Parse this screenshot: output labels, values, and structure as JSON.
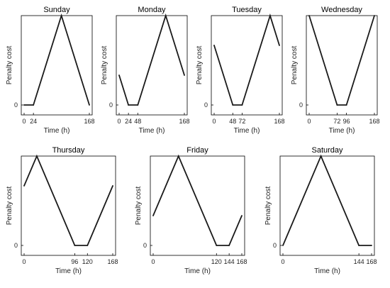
{
  "chart_data": [
    {
      "type": "line",
      "title": "Sunday",
      "xlabel": "Time (h)",
      "ylabel": "Penalty cost",
      "xlim": [
        0,
        168
      ],
      "xticks": [
        0,
        24,
        168
      ],
      "yticks": [
        0
      ],
      "x": [
        0,
        24,
        96,
        168
      ],
      "y": [
        0,
        0,
        1,
        0
      ]
    },
    {
      "type": "line",
      "title": "Monday",
      "xlabel": "Time (h)",
      "ylabel": "Penalty cost",
      "xlim": [
        0,
        168
      ],
      "xticks": [
        0,
        24,
        48,
        168
      ],
      "yticks": [
        0
      ],
      "x": [
        0,
        24,
        48,
        120,
        168
      ],
      "y": [
        0.333,
        0,
        0,
        1,
        0.333
      ]
    },
    {
      "type": "line",
      "title": "Tuesday",
      "xlabel": "Time (h)",
      "ylabel": "Penalty cost",
      "xlim": [
        0,
        168
      ],
      "xticks": [
        0,
        48,
        72,
        168
      ],
      "yticks": [
        0
      ],
      "x": [
        0,
        48,
        72,
        144,
        168
      ],
      "y": [
        0.667,
        0,
        0,
        1,
        0.667
      ]
    },
    {
      "type": "line",
      "title": "Wednesday",
      "xlabel": "Time (h)",
      "ylabel": "Penalty cost",
      "xlim": [
        0,
        168
      ],
      "xticks": [
        0,
        72,
        96,
        168
      ],
      "yticks": [
        0
      ],
      "x": [
        0,
        72,
        96,
        168
      ],
      "y": [
        1,
        0,
        0,
        1
      ]
    },
    {
      "type": "line",
      "title": "Thursday",
      "xlabel": "Time (h)",
      "ylabel": "Penalty cost",
      "xlim": [
        0,
        168
      ],
      "xticks": [
        0,
        96,
        120,
        168
      ],
      "yticks": [
        0
      ],
      "x": [
        0,
        24,
        96,
        120,
        168
      ],
      "y": [
        0.667,
        1,
        0,
        0,
        0.667
      ]
    },
    {
      "type": "line",
      "title": "Friday",
      "xlabel": "Time (h)",
      "ylabel": "Penalty cost",
      "xlim": [
        0,
        168
      ],
      "xticks": [
        0,
        120,
        144,
        168
      ],
      "yticks": [
        0
      ],
      "x": [
        0,
        48,
        120,
        144,
        168
      ],
      "y": [
        0.333,
        1,
        0,
        0,
        0.333
      ]
    },
    {
      "type": "line",
      "title": "Saturday",
      "xlabel": "Time (h)",
      "ylabel": "Penalty cost",
      "xlim": [
        0,
        168
      ],
      "xticks": [
        0,
        144,
        168
      ],
      "yticks": [
        0
      ],
      "x": [
        0,
        72,
        144,
        168
      ],
      "y": [
        0,
        1,
        0,
        0
      ]
    }
  ]
}
